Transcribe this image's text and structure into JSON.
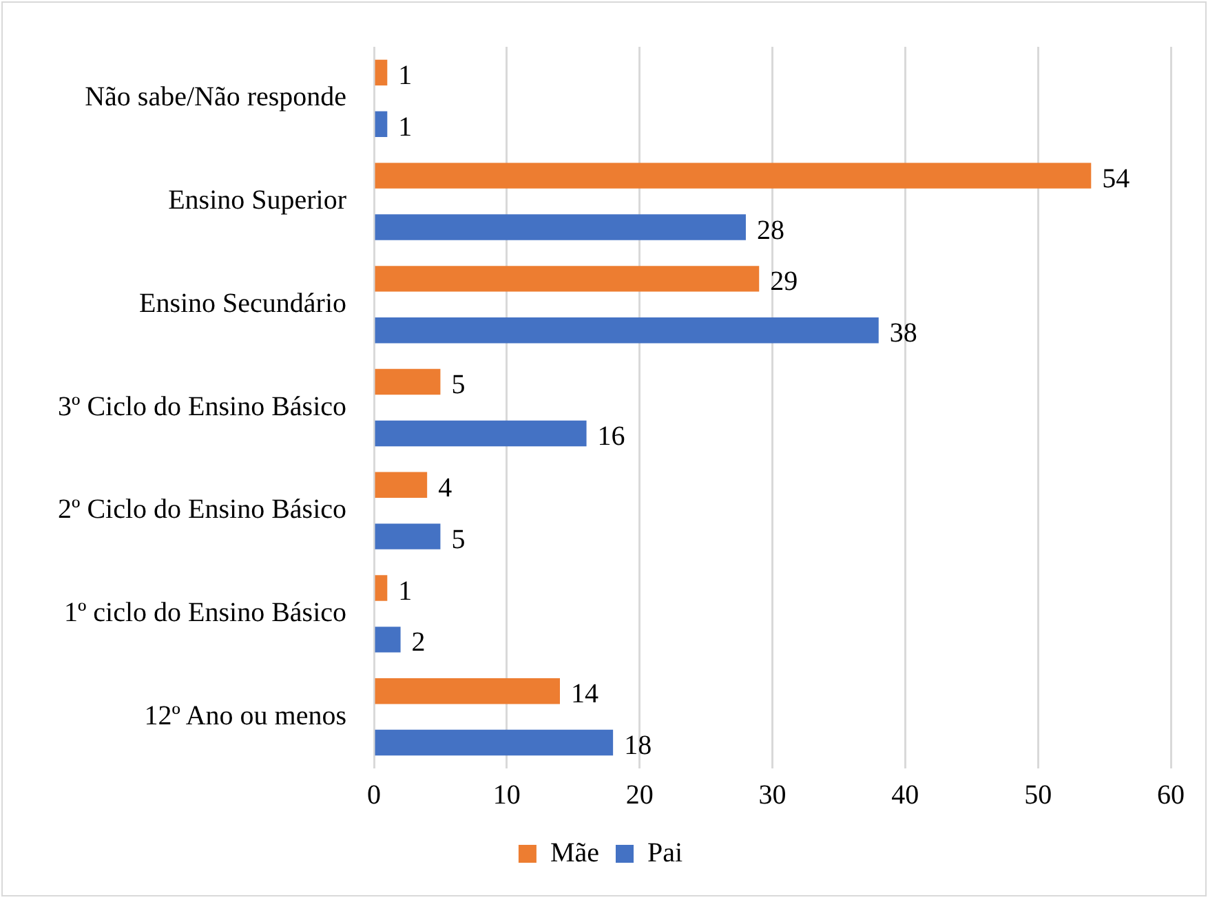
{
  "chart_data": {
    "type": "bar",
    "orientation": "horizontal",
    "categories": [
      "Não sabe/Não responde",
      "Ensino Superior",
      "Ensino Secundário",
      "3º Ciclo do Ensino Básico",
      "2º Ciclo do Ensino Básico",
      "1º ciclo do Ensino Básico",
      "12º Ano ou menos"
    ],
    "series": [
      {
        "name": "Mãe",
        "color": "#ed7d31",
        "values": [
          1,
          54,
          29,
          5,
          4,
          1,
          14
        ]
      },
      {
        "name": "Pai",
        "color": "#4472c4",
        "values": [
          1,
          28,
          38,
          16,
          5,
          2,
          18
        ]
      }
    ],
    "xlim": [
      0,
      60
    ],
    "xticks": [
      0,
      10,
      20,
      30,
      40,
      50,
      60
    ],
    "grid": "x",
    "legend": "bottom",
    "data_labels": true
  }
}
